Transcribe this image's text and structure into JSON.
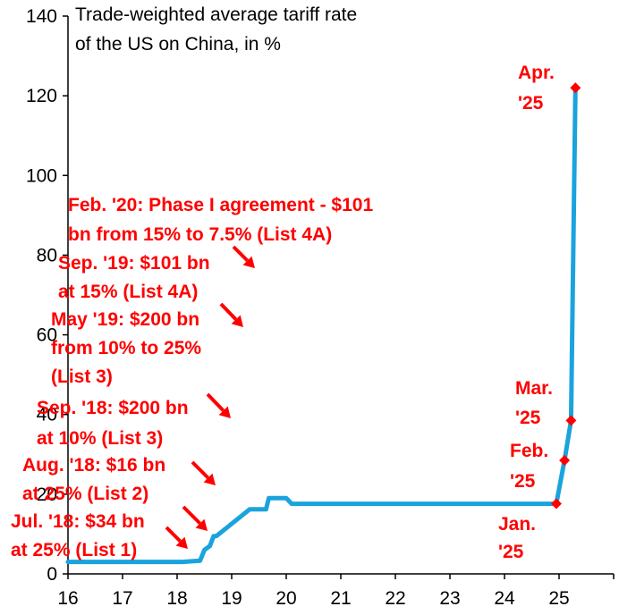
{
  "chart_data": {
    "type": "line",
    "title": [
      "Trade-weighted average tariff rate",
      "of the US on China, in %"
    ],
    "xlabel": "",
    "ylabel": "",
    "xlim": [
      16,
      26
    ],
    "ylim": [
      0,
      140
    ],
    "x_ticks": [
      16,
      17,
      18,
      19,
      20,
      21,
      22,
      23,
      24,
      25
    ],
    "y_ticks": [
      0,
      20,
      40,
      60,
      80,
      100,
      120,
      140
    ],
    "colors": {
      "line": "#1aa3dd",
      "accent": "#ff0000",
      "axis": "#000000"
    },
    "series": [
      {
        "name": "Trade-weighted average tariff rate",
        "x": [
          16.0,
          18.08,
          18.1,
          18.42,
          18.5,
          18.6,
          18.67,
          18.72,
          19.33,
          19.38,
          19.63,
          19.68,
          20.0,
          20.1,
          24.95,
          25.1,
          25.22,
          25.3
        ],
        "y": [
          3.0,
          3.0,
          3.0,
          3.3,
          6.0,
          7.0,
          9.5,
          9.5,
          16.2,
          16.2,
          16.2,
          19.0,
          19.0,
          17.6,
          17.6,
          28.5,
          38.5,
          122.0
        ]
      }
    ],
    "markers": [
      {
        "x": 24.95,
        "y": 17.6,
        "label": [
          "Jan.",
          "'25"
        ]
      },
      {
        "x": 25.1,
        "y": 28.5,
        "label": [
          "Feb.",
          "'25"
        ]
      },
      {
        "x": 25.22,
        "y": 38.5,
        "label": [
          "Mar.",
          "'25"
        ]
      },
      {
        "x": 25.3,
        "y": 122.0,
        "label": [
          "Apr.",
          "'25"
        ]
      }
    ],
    "annotations": [
      {
        "id": "jul18",
        "lines": [
          "Jul. '18: $34 bn",
          "at 25% (List 1)"
        ]
      },
      {
        "id": "aug18",
        "lines": [
          "Aug. '18: $16 bn",
          "at 25% (List 2)"
        ]
      },
      {
        "id": "sep18",
        "lines": [
          "Sep. '18: $200 bn",
          "at 10% (List 3)"
        ]
      },
      {
        "id": "may19",
        "lines": [
          "May '19: $200 bn",
          "from 10% to 25%",
          "(List 3)"
        ]
      },
      {
        "id": "sep19",
        "lines": [
          "Sep. '19: $101 bn",
          "at 15% (List 4A)"
        ]
      },
      {
        "id": "feb20",
        "lines": [
          "Feb. '20: Phase I agreement - $101",
          "bn from 15% to 7.5% (List 4A)"
        ]
      }
    ]
  }
}
